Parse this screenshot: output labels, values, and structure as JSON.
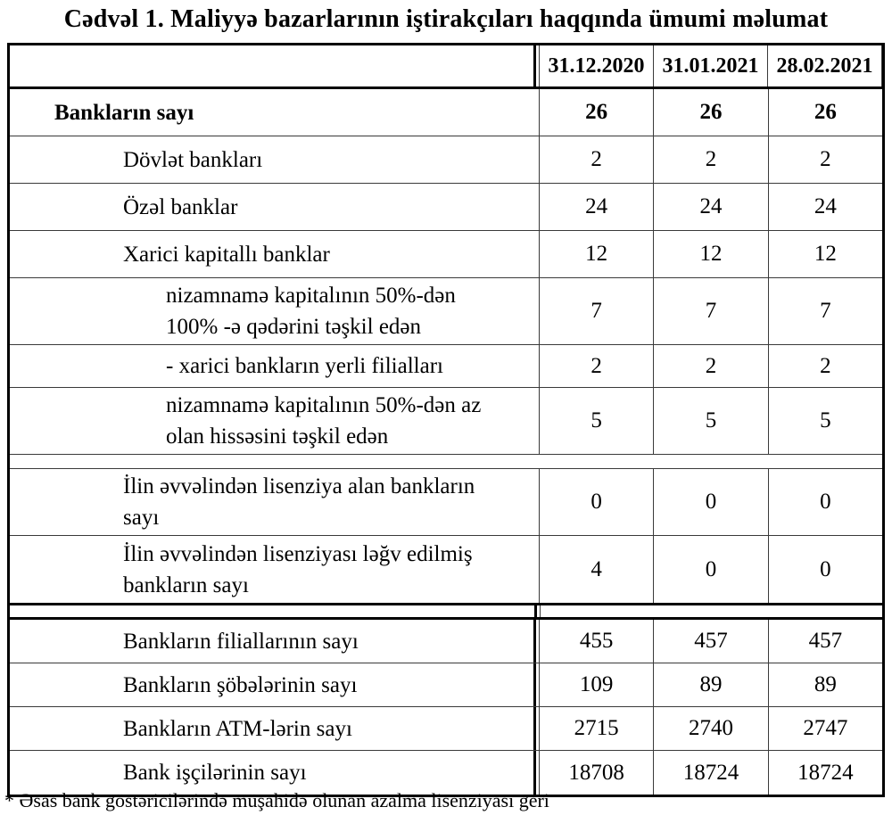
{
  "title": "Cədvəl 1. Maliyyə bazarlarının iştirakçıları haqqında ümumi məlumat",
  "table": {
    "header": {
      "columns": [
        "31.12.2020",
        "31.01.2021",
        "28.02.2021"
      ]
    },
    "sections": [
      {
        "rows": [
          {
            "label": "Bankların sayı",
            "indent": 1,
            "bold": true,
            "values": [
              "26",
              "26",
              "26"
            ]
          },
          {
            "label": "Dövlət bankları",
            "indent": 2,
            "values": [
              "2",
              "2",
              "2"
            ]
          },
          {
            "label": "Özəl banklar",
            "indent": 2,
            "values": [
              "24",
              "24",
              "24"
            ]
          },
          {
            "label": "Xarici kapitallı banklar",
            "indent": 2,
            "values": [
              "12",
              "12",
              "12"
            ]
          },
          {
            "lines": [
              "nizamnamə kapitalının 50%-dən",
              "100% -ə qədərini təşkil edən"
            ],
            "indent": 3,
            "values": [
              "7",
              "7",
              "7"
            ]
          },
          {
            "label": "-  xarici bankların yerli filialları",
            "indent": 3,
            "short": true,
            "values": [
              "2",
              "2",
              "2"
            ]
          },
          {
            "lines": [
              "nizamnamə kapitalının 50%-dən az",
              "olan hissəsini  təşkil edən"
            ],
            "indent": 3,
            "values": [
              "5",
              "5",
              "5"
            ]
          },
          {
            "spacer": true
          },
          {
            "lines": [
              "İlin əvvəlindən lisenziya alan bankların",
              "sayı"
            ],
            "indent": 2,
            "values": [
              "0",
              "0",
              "0"
            ]
          },
          {
            "lines": [
              "İlin əvvəlindən lisenziyası ləğv edilmiş",
              "bankların sayı"
            ],
            "indent": 2,
            "values": [
              "4",
              "0",
              "0"
            ]
          }
        ]
      },
      {
        "rows": [
          {
            "label": "Bankların filiallarının sayı",
            "indent": 2,
            "values": [
              "455",
              "457",
              "457"
            ]
          },
          {
            "label": "Bankların şöbələrinin sayı",
            "indent": 2,
            "values": [
              "109",
              "89",
              "89"
            ]
          },
          {
            "label": "Bankların ATM-lərin sayı",
            "indent": 2,
            "values": [
              "2715",
              "2740",
              "2747"
            ]
          },
          {
            "label": "Bank işçilərinin sayı",
            "indent": 2,
            "values": [
              "18708",
              "18724",
              "18724"
            ]
          }
        ]
      }
    ]
  },
  "footnote": "* Əsas bank göstəricilərində müşahidə olunan azalma lisenziyası geri",
  "colors": {
    "text": "#000000",
    "border_outer": "#000000",
    "border_inner": "#3a3a3a",
    "background": "#ffffff"
  }
}
